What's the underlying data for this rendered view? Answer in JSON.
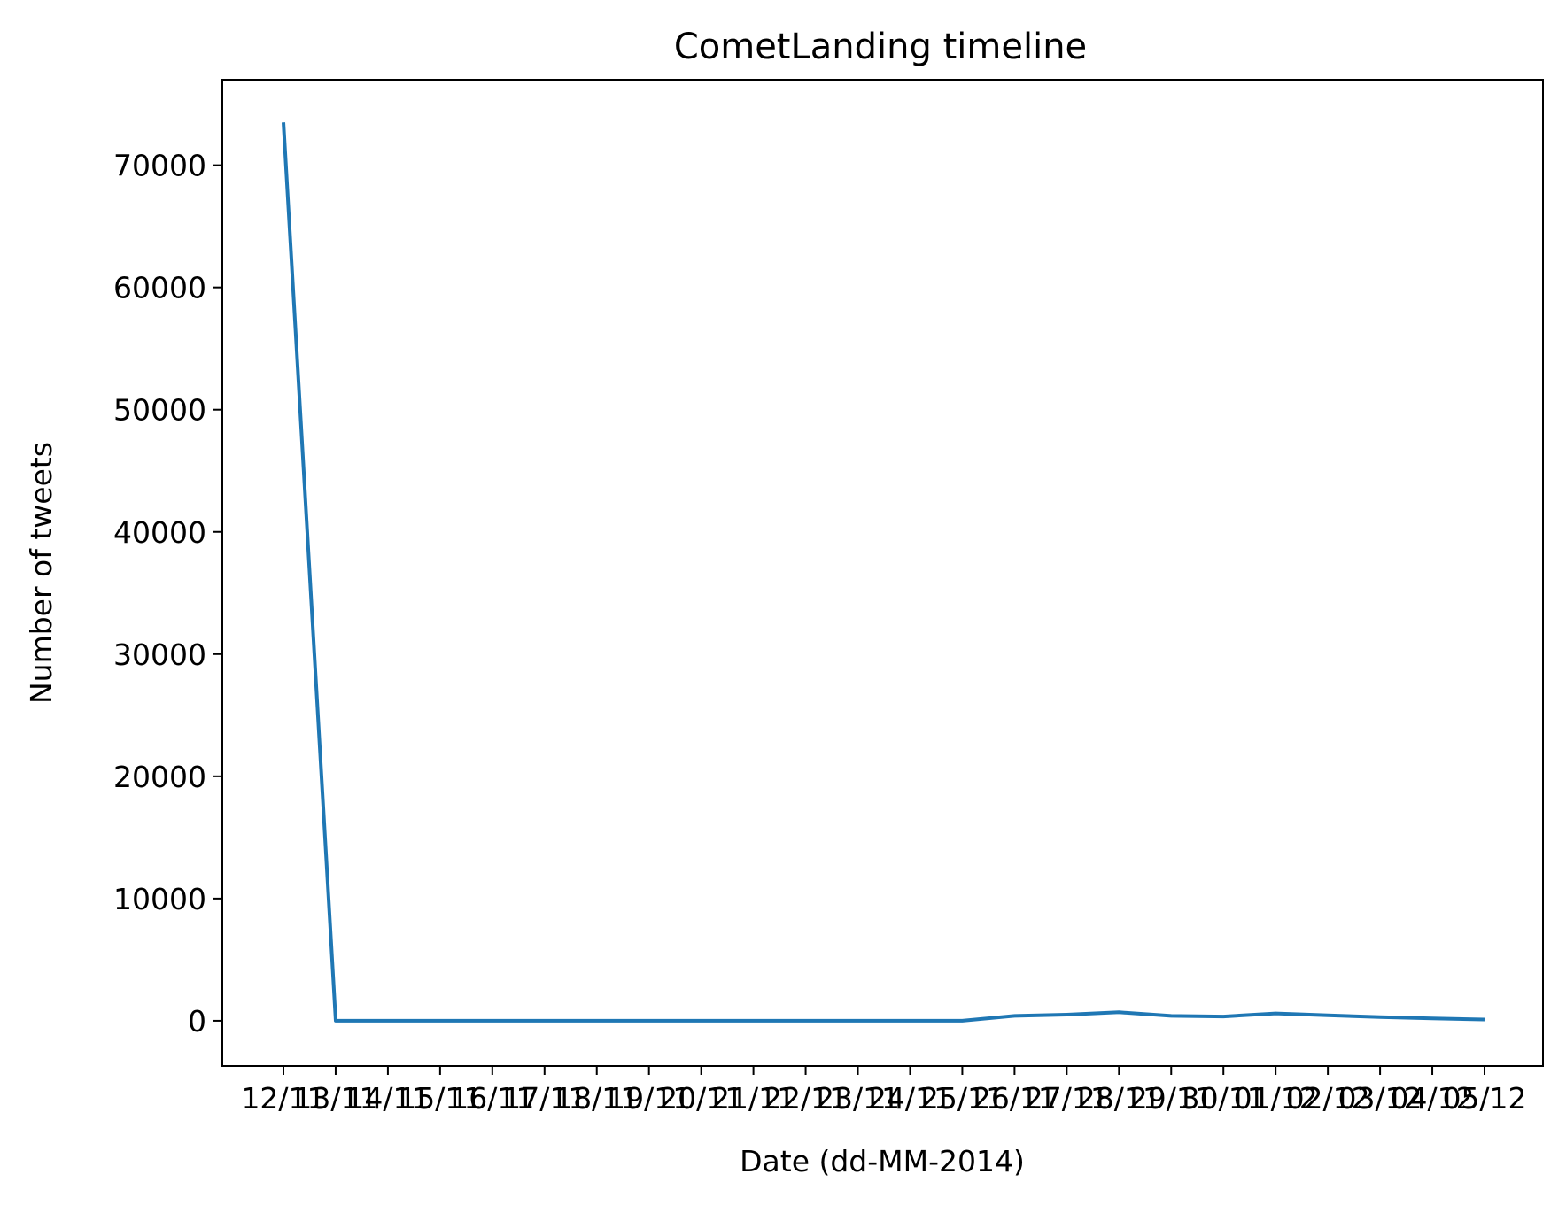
{
  "chart_data": {
    "type": "line",
    "title": "CometLanding timeline",
    "xlabel": "Date (dd-MM-2014)",
    "ylabel": "Number of tweets",
    "categories": [
      "12/11",
      "13/11",
      "14/11",
      "15/11",
      "16/11",
      "17/11",
      "18/11",
      "19/11",
      "20/11",
      "21/11",
      "22/11",
      "23/11",
      "24/11",
      "25/11",
      "26/11",
      "27/11",
      "28/11",
      "29/11",
      "30/11",
      "01/12",
      "02/12",
      "03/12",
      "04/12",
      "05/12"
    ],
    "series": [
      {
        "values": [
          73500,
          0,
          0,
          0,
          0,
          0,
          0,
          0,
          0,
          0,
          0,
          0,
          0,
          0,
          400,
          500,
          700,
          400,
          350,
          600,
          450,
          300,
          200,
          100
        ]
      }
    ],
    "ylim": [
      -3700,
      77000
    ],
    "yticks": [
      0,
      10000,
      20000,
      30000,
      40000,
      50000,
      60000,
      70000
    ],
    "grid": false,
    "line_color": "#1f77b4"
  }
}
